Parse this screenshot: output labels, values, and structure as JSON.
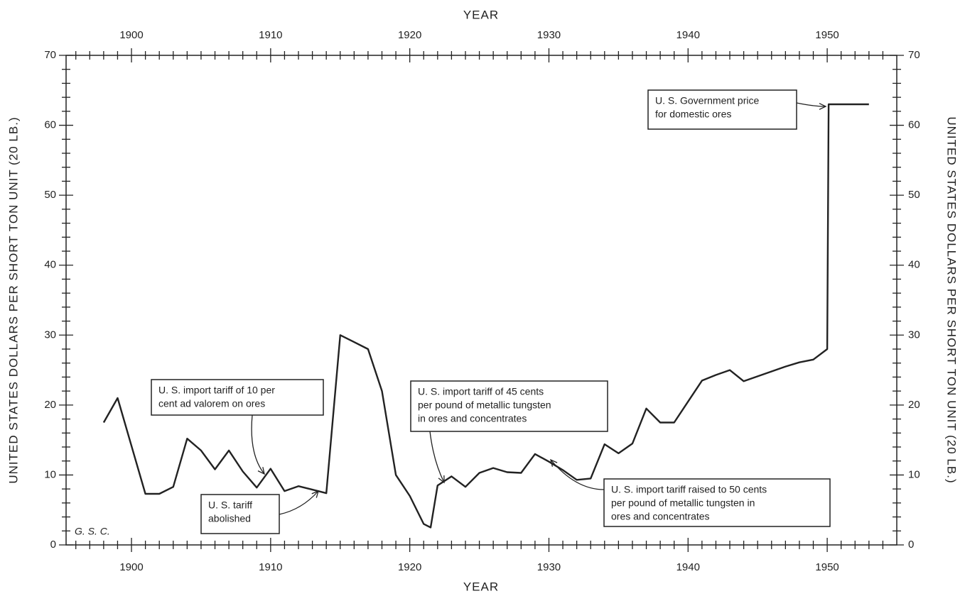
{
  "chart_data": {
    "type": "line",
    "xlabel": "YEAR",
    "ylabel": "UNITED STATES DOLLARS PER SHORT TON UNIT (20 LB.)",
    "y2label": "UNITED STATES DOLLARS PER SHORT TON UNIT (20 LB.)",
    "xlim": [
      1895.3,
      1955
    ],
    "xticks": [
      1900,
      1910,
      1920,
      1930,
      1940,
      1950
    ],
    "xminorticks": [
      1896,
      1897,
      1898,
      1899,
      1901,
      1902,
      1903,
      1904,
      1905,
      1906,
      1907,
      1908,
      1909,
      1911,
      1912,
      1913,
      1914,
      1915,
      1916,
      1917,
      1918,
      1919,
      1921,
      1922,
      1923,
      1924,
      1925,
      1926,
      1927,
      1928,
      1929,
      1931,
      1932,
      1933,
      1934,
      1935,
      1936,
      1937,
      1938,
      1939,
      1941,
      1942,
      1943,
      1944,
      1945,
      1946,
      1947,
      1948,
      1949,
      1951,
      1952,
      1953,
      1954
    ],
    "ylim": [
      0,
      70
    ],
    "yticks": [
      0,
      10,
      20,
      30,
      40,
      50,
      60,
      70
    ],
    "yminorticks": [
      2,
      4,
      6,
      8,
      12,
      14,
      16,
      18,
      22,
      24,
      26,
      28,
      32,
      34,
      36,
      38,
      42,
      44,
      46,
      48,
      52,
      54,
      56,
      58,
      62,
      64,
      66,
      68
    ],
    "y2lim": [
      0,
      70
    ],
    "y2ticks": [
      0,
      10,
      20,
      30,
      40,
      50,
      60,
      70
    ],
    "series": [
      {
        "color": "#222222",
        "x": [
          1898,
          1899,
          1901,
          1902,
          1903,
          1904,
          1905,
          1906,
          1907,
          1908,
          1909,
          1910,
          1911,
          1912,
          1913,
          1914,
          1915,
          1916,
          1917,
          1918,
          1919,
          1920,
          1921,
          1921.5,
          1922,
          1923,
          1924,
          1925,
          1926,
          1927,
          1928,
          1929,
          1930,
          1931,
          1932,
          1933,
          1934,
          1935,
          1936,
          1937,
          1938,
          1939,
          1940,
          1941,
          1942,
          1943,
          1944,
          1945,
          1946,
          1947,
          1948,
          1949,
          1950,
          1950.1,
          1953
        ],
        "values": [
          17.5,
          21,
          7.3,
          7.3,
          8.3,
          15.2,
          13.5,
          10.8,
          13.5,
          10.5,
          8.2,
          10.9,
          7.7,
          8.4,
          7.9,
          7.4,
          30,
          29,
          28,
          22,
          10,
          7,
          3,
          2.5,
          8.5,
          9.8,
          8.3,
          10.3,
          11,
          10.4,
          10.3,
          13,
          11.9,
          10.7,
          9.3,
          9.5,
          14.4,
          13.1,
          14.5,
          19.5,
          17.5,
          17.5,
          20.5,
          23.5,
          24.3,
          25,
          23.4,
          24.1,
          24.8,
          25.5,
          26.1,
          26.5,
          28,
          63,
          63
        ]
      }
    ],
    "annotations": [
      {
        "lines": [
          "U. S. import tariff of 10 per",
          "cent ad valorem on ores"
        ]
      },
      {
        "lines": [
          "U. S. tariff",
          "abolished"
        ]
      },
      {
        "lines": [
          "U. S. import tariff of 45 cents",
          "per pound of metallic tungsten",
          "in ores and concentrates"
        ]
      },
      {
        "lines": [
          "U. S. import tariff raised to 50 cents",
          "per pound of metallic tungsten in",
          "ores and concentrates"
        ]
      },
      {
        "lines": [
          "U. S. Government price",
          "for domestic ores"
        ]
      },
      {
        "lines": [
          "G. S. C."
        ]
      }
    ]
  }
}
